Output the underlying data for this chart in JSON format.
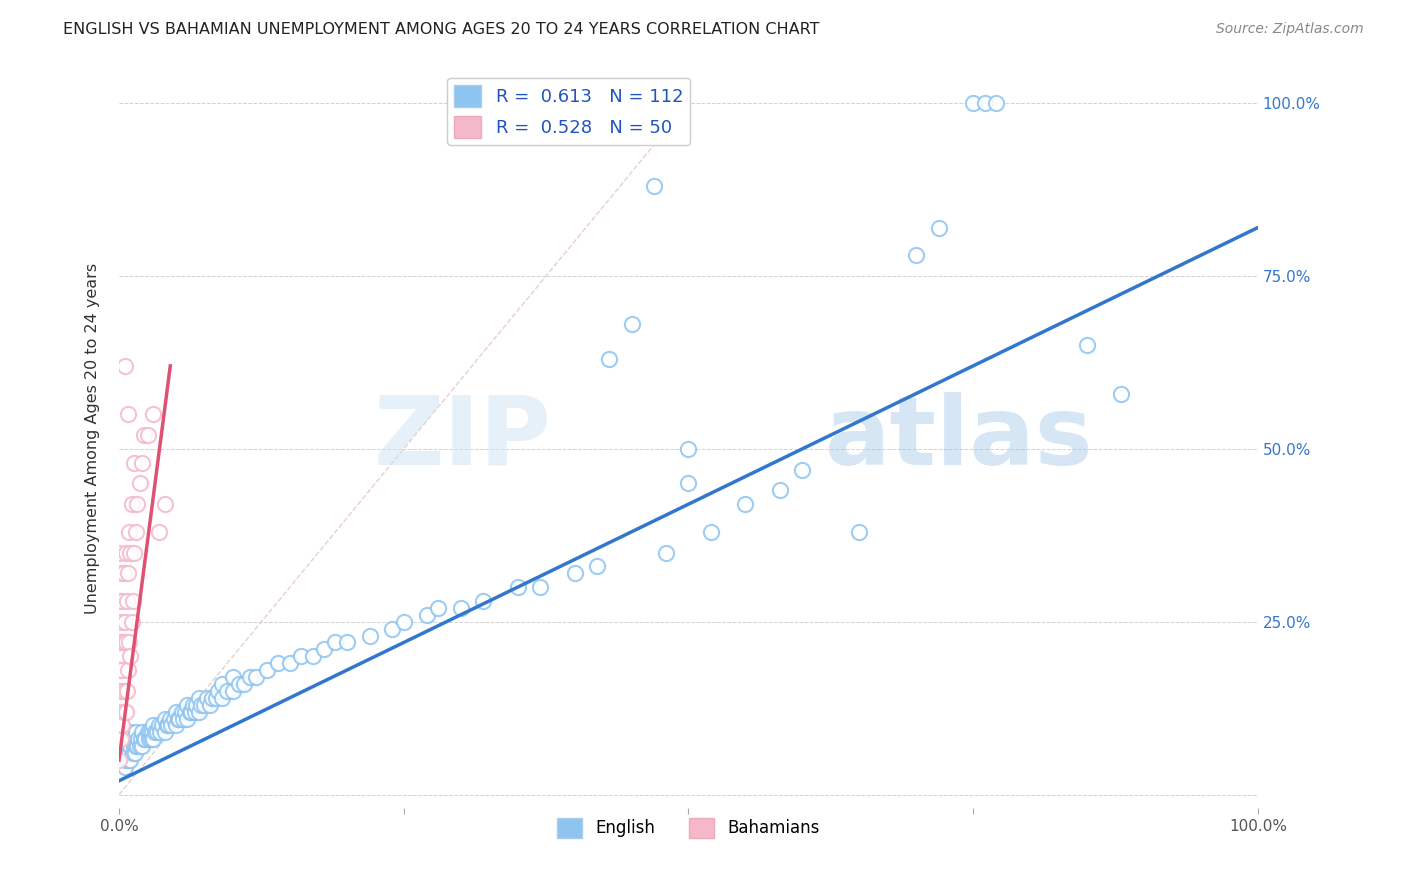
{
  "title": "ENGLISH VS BAHAMIAN UNEMPLOYMENT AMONG AGES 20 TO 24 YEARS CORRELATION CHART",
  "source": "Source: ZipAtlas.com",
  "ylabel": "Unemployment Among Ages 20 to 24 years",
  "xlim": [
    0.0,
    1.0
  ],
  "ylim": [
    -0.02,
    1.05
  ],
  "english_color": "#8ec4f0",
  "bahamian_color": "#f5b8c8",
  "english_R": 0.613,
  "english_N": 112,
  "bahamian_R": 0.528,
  "bahamian_N": 50,
  "english_line_color": "#3377cc",
  "bahamian_line_color": "#e05070",
  "diagonal_color": "#cccccc",
  "watermark_zip": "ZIP",
  "watermark_atlas": "atlas",
  "english_points": [
    [
      0.003,
      0.05
    ],
    [
      0.004,
      0.06
    ],
    [
      0.005,
      0.04
    ],
    [
      0.005,
      0.07
    ],
    [
      0.006,
      0.05
    ],
    [
      0.007,
      0.06
    ],
    [
      0.007,
      0.08
    ],
    [
      0.008,
      0.05
    ],
    [
      0.008,
      0.07
    ],
    [
      0.009,
      0.06
    ],
    [
      0.01,
      0.05
    ],
    [
      0.01,
      0.07
    ],
    [
      0.01,
      0.09
    ],
    [
      0.012,
      0.06
    ],
    [
      0.012,
      0.08
    ],
    [
      0.013,
      0.07
    ],
    [
      0.014,
      0.06
    ],
    [
      0.015,
      0.07
    ],
    [
      0.015,
      0.09
    ],
    [
      0.016,
      0.07
    ],
    [
      0.017,
      0.08
    ],
    [
      0.018,
      0.07
    ],
    [
      0.019,
      0.08
    ],
    [
      0.02,
      0.07
    ],
    [
      0.02,
      0.09
    ],
    [
      0.022,
      0.08
    ],
    [
      0.023,
      0.08
    ],
    [
      0.025,
      0.09
    ],
    [
      0.026,
      0.08
    ],
    [
      0.027,
      0.09
    ],
    [
      0.028,
      0.08
    ],
    [
      0.029,
      0.09
    ],
    [
      0.03,
      0.08
    ],
    [
      0.03,
      0.1
    ],
    [
      0.032,
      0.09
    ],
    [
      0.033,
      0.09
    ],
    [
      0.035,
      0.1
    ],
    [
      0.036,
      0.09
    ],
    [
      0.038,
      0.1
    ],
    [
      0.04,
      0.09
    ],
    [
      0.04,
      0.11
    ],
    [
      0.042,
      0.1
    ],
    [
      0.043,
      0.1
    ],
    [
      0.045,
      0.11
    ],
    [
      0.046,
      0.1
    ],
    [
      0.048,
      0.11
    ],
    [
      0.05,
      0.1
    ],
    [
      0.05,
      0.12
    ],
    [
      0.052,
      0.11
    ],
    [
      0.053,
      0.11
    ],
    [
      0.055,
      0.12
    ],
    [
      0.056,
      0.11
    ],
    [
      0.058,
      0.12
    ],
    [
      0.06,
      0.11
    ],
    [
      0.06,
      0.13
    ],
    [
      0.062,
      0.12
    ],
    [
      0.063,
      0.12
    ],
    [
      0.065,
      0.13
    ],
    [
      0.067,
      0.12
    ],
    [
      0.068,
      0.13
    ],
    [
      0.07,
      0.12
    ],
    [
      0.07,
      0.14
    ],
    [
      0.072,
      0.13
    ],
    [
      0.075,
      0.13
    ],
    [
      0.077,
      0.14
    ],
    [
      0.08,
      0.13
    ],
    [
      0.082,
      0.14
    ],
    [
      0.085,
      0.14
    ],
    [
      0.087,
      0.15
    ],
    [
      0.09,
      0.14
    ],
    [
      0.09,
      0.16
    ],
    [
      0.095,
      0.15
    ],
    [
      0.1,
      0.15
    ],
    [
      0.1,
      0.17
    ],
    [
      0.105,
      0.16
    ],
    [
      0.11,
      0.16
    ],
    [
      0.115,
      0.17
    ],
    [
      0.12,
      0.17
    ],
    [
      0.13,
      0.18
    ],
    [
      0.14,
      0.19
    ],
    [
      0.15,
      0.19
    ],
    [
      0.16,
      0.2
    ],
    [
      0.17,
      0.2
    ],
    [
      0.18,
      0.21
    ],
    [
      0.19,
      0.22
    ],
    [
      0.2,
      0.22
    ],
    [
      0.22,
      0.23
    ],
    [
      0.24,
      0.24
    ],
    [
      0.25,
      0.25
    ],
    [
      0.27,
      0.26
    ],
    [
      0.28,
      0.27
    ],
    [
      0.3,
      0.27
    ],
    [
      0.32,
      0.28
    ],
    [
      0.35,
      0.3
    ],
    [
      0.37,
      0.3
    ],
    [
      0.4,
      0.32
    ],
    [
      0.42,
      0.33
    ],
    [
      0.43,
      0.63
    ],
    [
      0.45,
      0.68
    ],
    [
      0.47,
      0.88
    ],
    [
      0.48,
      0.35
    ],
    [
      0.5,
      0.45
    ],
    [
      0.5,
      0.5
    ],
    [
      0.52,
      0.38
    ],
    [
      0.55,
      0.42
    ],
    [
      0.58,
      0.44
    ],
    [
      0.6,
      0.47
    ],
    [
      0.65,
      0.38
    ],
    [
      0.7,
      0.78
    ],
    [
      0.72,
      0.82
    ],
    [
      0.75,
      1.0
    ],
    [
      0.76,
      1.0
    ],
    [
      0.77,
      1.0
    ],
    [
      0.85,
      0.65
    ],
    [
      0.88,
      0.58
    ]
  ],
  "bahamian_points": [
    [
      0.0,
      0.05
    ],
    [
      0.0,
      0.08
    ],
    [
      0.0,
      0.12
    ],
    [
      0.0,
      0.15
    ],
    [
      0.0,
      0.18
    ],
    [
      0.0,
      0.22
    ],
    [
      0.0,
      0.28
    ],
    [
      0.0,
      0.35
    ],
    [
      0.001,
      0.1
    ],
    [
      0.001,
      0.18
    ],
    [
      0.001,
      0.25
    ],
    [
      0.002,
      0.08
    ],
    [
      0.002,
      0.15
    ],
    [
      0.002,
      0.22
    ],
    [
      0.002,
      0.32
    ],
    [
      0.003,
      0.1
    ],
    [
      0.003,
      0.18
    ],
    [
      0.003,
      0.28
    ],
    [
      0.004,
      0.12
    ],
    [
      0.004,
      0.22
    ],
    [
      0.004,
      0.32
    ],
    [
      0.005,
      0.15
    ],
    [
      0.005,
      0.25
    ],
    [
      0.006,
      0.12
    ],
    [
      0.006,
      0.22
    ],
    [
      0.006,
      0.35
    ],
    [
      0.007,
      0.15
    ],
    [
      0.007,
      0.28
    ],
    [
      0.008,
      0.18
    ],
    [
      0.008,
      0.32
    ],
    [
      0.009,
      0.22
    ],
    [
      0.009,
      0.38
    ],
    [
      0.01,
      0.2
    ],
    [
      0.01,
      0.35
    ],
    [
      0.011,
      0.25
    ],
    [
      0.011,
      0.42
    ],
    [
      0.012,
      0.28
    ],
    [
      0.013,
      0.35
    ],
    [
      0.013,
      0.48
    ],
    [
      0.015,
      0.38
    ],
    [
      0.016,
      0.42
    ],
    [
      0.018,
      0.45
    ],
    [
      0.02,
      0.48
    ],
    [
      0.022,
      0.52
    ],
    [
      0.025,
      0.52
    ],
    [
      0.03,
      0.55
    ],
    [
      0.035,
      0.38
    ],
    [
      0.04,
      0.42
    ],
    [
      0.005,
      0.62
    ],
    [
      0.008,
      0.55
    ]
  ],
  "english_line_x": [
    0.0,
    1.0
  ],
  "english_line_y": [
    0.02,
    0.82
  ],
  "bahamian_line_x": [
    0.0,
    0.045
  ],
  "bahamian_line_y": [
    0.05,
    0.62
  ]
}
